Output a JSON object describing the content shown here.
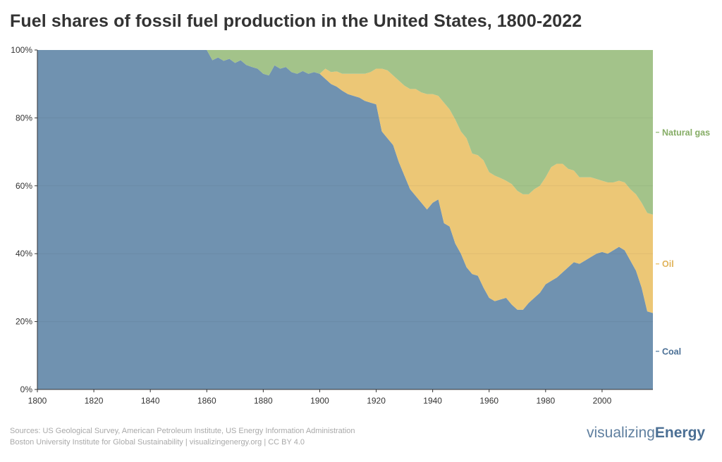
{
  "title": "Fuel shares of fossil fuel production in the United States, 1800-2022",
  "chart_data": {
    "type": "area",
    "stacked": true,
    "normalized": true,
    "title": "Fuel shares of fossil fuel production in the United States, 1800-2022",
    "xlabel": "",
    "ylabel": "",
    "xlim": [
      1800,
      2018
    ],
    "ylim": [
      0,
      100
    ],
    "x_ticks": [
      1800,
      1820,
      1840,
      1860,
      1880,
      1900,
      1920,
      1940,
      1960,
      1980,
      2000
    ],
    "y_ticks": [
      0,
      20,
      40,
      60,
      80,
      100
    ],
    "y_tick_labels": [
      "0%",
      "20%",
      "40%",
      "60%",
      "80%",
      "100%"
    ],
    "x": [
      1800,
      1859,
      1860,
      1862,
      1864,
      1866,
      1868,
      1870,
      1872,
      1874,
      1876,
      1878,
      1880,
      1882,
      1884,
      1886,
      1888,
      1890,
      1892,
      1894,
      1896,
      1898,
      1900,
      1902,
      1904,
      1906,
      1908,
      1910,
      1912,
      1914,
      1916,
      1918,
      1920,
      1922,
      1924,
      1926,
      1928,
      1930,
      1932,
      1934,
      1936,
      1938,
      1940,
      1942,
      1944,
      1946,
      1948,
      1950,
      1952,
      1954,
      1956,
      1958,
      1960,
      1962,
      1964,
      1966,
      1968,
      1970,
      1972,
      1974,
      1976,
      1978,
      1980,
      1982,
      1984,
      1986,
      1988,
      1990,
      1992,
      1994,
      1996,
      1998,
      2000,
      2002,
      2004,
      2006,
      2008,
      2010,
      2012,
      2014,
      2016,
      2018
    ],
    "series": [
      {
        "name": "Coal",
        "color": "#7092b0",
        "values": [
          100,
          100,
          100,
          97,
          97.8,
          96.8,
          97.4,
          96.2,
          97,
          95.6,
          95,
          94.5,
          93,
          92.5,
          95.5,
          94.5,
          95,
          93.5,
          93,
          93.8,
          93,
          93.5,
          93,
          91.5,
          90,
          89.2,
          88,
          87,
          86.5,
          86,
          85,
          84.5,
          84,
          76,
          74,
          72,
          67,
          63,
          59,
          57,
          55,
          53,
          55,
          56,
          49,
          48,
          43,
          40,
          36,
          34,
          33.5,
          30,
          27,
          26,
          26.5,
          27,
          25,
          23.5,
          23.5,
          25.5,
          27,
          28.5,
          31,
          32,
          33,
          34.5,
          36,
          37.5,
          37,
          38,
          39,
          40,
          40.5,
          40,
          41,
          42,
          41,
          38,
          35,
          30,
          23,
          22.5
        ]
      },
      {
        "name": "Oil",
        "color": "#ecc776",
        "values": [
          0,
          0,
          0,
          0,
          0,
          0,
          0,
          0,
          0,
          0,
          0,
          0,
          0,
          0,
          0,
          0,
          0,
          0,
          0,
          0,
          0,
          0,
          0,
          3,
          3.5,
          4.5,
          5,
          6,
          6.5,
          7,
          8,
          9,
          10.5,
          18.5,
          20,
          20.5,
          24,
          26.5,
          29.5,
          31.5,
          32.5,
          34,
          32,
          30.5,
          35.5,
          34.5,
          36.5,
          36,
          38,
          35.5,
          35.5,
          37.5,
          37,
          37,
          35.8,
          34.5,
          35.5,
          35,
          34,
          32,
          32,
          31.5,
          31.5,
          33.5,
          33.5,
          32,
          29,
          27,
          25.5,
          24.5,
          23.5,
          22,
          21,
          21,
          20,
          19.5,
          20,
          21,
          22.5,
          25,
          29,
          29
        ]
      },
      {
        "name": "Natural gas",
        "color": "#a3c38a",
        "values": [
          0,
          0,
          0,
          3,
          2.2,
          3.2,
          2.6,
          3.8,
          3,
          4.4,
          5,
          5.5,
          7,
          7.5,
          4.5,
          5.5,
          5,
          6.5,
          7,
          6.2,
          7,
          6.5,
          7,
          5.5,
          6.5,
          6.3,
          7,
          7,
          7,
          7,
          7,
          6.5,
          5.5,
          5.5,
          6,
          7.5,
          9,
          10.5,
          11.5,
          11.5,
          12.5,
          13,
          13,
          13.5,
          15.5,
          17.5,
          20.5,
          24,
          26,
          30.5,
          31,
          32.5,
          36,
          37,
          37.7,
          38.5,
          39.5,
          41.5,
          42.5,
          42.5,
          41,
          40,
          37.5,
          34.5,
          33.5,
          33.5,
          35,
          35.5,
          37.5,
          37.5,
          37.5,
          38,
          38.5,
          39,
          39,
          38.5,
          39,
          41,
          42.5,
          45,
          48,
          48.5
        ]
      }
    ],
    "legend": "right-end labels"
  },
  "footer": {
    "line1": "Sources: US Geological Survey, American Petroleum Institute, US Energy Information Administration",
    "line2": "Boston University Institute for Global Sustainability | visualizingenergy.org | CC BY 4.0"
  },
  "brand": {
    "part1": "visualizing",
    "part2": "Energy"
  }
}
